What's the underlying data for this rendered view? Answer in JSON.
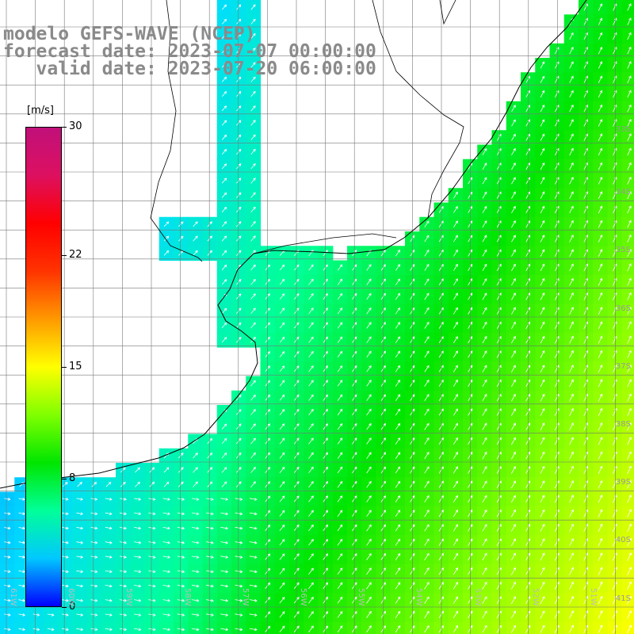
{
  "title": {
    "line1": "modelo GEFS-WAVE (NCEP)",
    "line2": "forecast date: 2023-07-07 00:00:00",
    "line3": "   valid date: 2023-07-20 06:00:00"
  },
  "colorbar": {
    "unit": "[m/s]",
    "ticks": [
      "30",
      "22",
      "15",
      "8",
      "0"
    ],
    "tick_values": [
      30,
      22,
      15,
      8,
      0
    ],
    "range": [
      0,
      30
    ],
    "colors": [
      "#0000ff",
      "#00c8ff",
      "#00ff99",
      "#00e600",
      "#80ff00",
      "#ffff00",
      "#ff9900",
      "#ff3300",
      "#ff0000",
      "#dd1060",
      "#c0107a"
    ]
  },
  "lat_labels": [
    "33S",
    "34S",
    "35S",
    "36S",
    "37S",
    "38S",
    "39S",
    "40S",
    "41S"
  ],
  "lat_values": [
    -33,
    -34,
    -35,
    -36,
    -37,
    -38,
    -39,
    -40,
    -41
  ],
  "lon_labels": [
    "61W",
    "60W",
    "59W",
    "58W",
    "57W",
    "56W",
    "55W",
    "54W",
    "53W",
    "52W",
    "51W"
  ],
  "lon_values": [
    -61,
    -60,
    -59,
    -58,
    -57,
    -56,
    -55,
    -54,
    -53,
    -52,
    -51
  ],
  "chart_data": {
    "type": "heatmap",
    "variable": "wind speed",
    "unit": "m/s",
    "lat_range": [
      -41.2,
      -30.8
    ],
    "lon_range": [
      -61.2,
      -50.4
    ],
    "grid_spacing_deg": 0.25,
    "vector_field": "wind direction arrows",
    "speed_range_shown": [
      6,
      17
    ]
  }
}
